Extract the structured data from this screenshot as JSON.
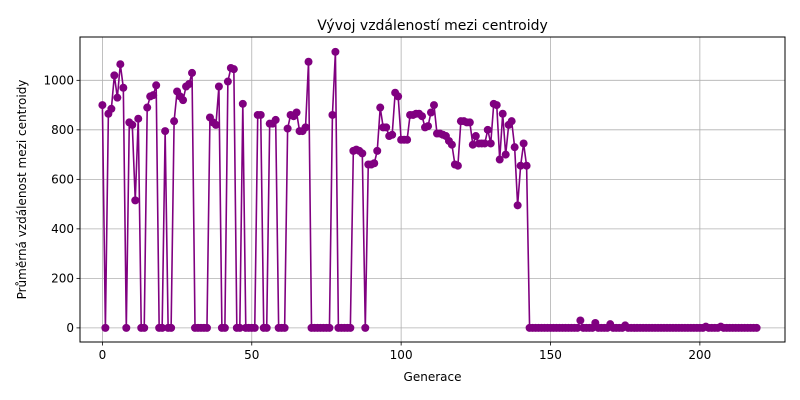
{
  "chart_data": {
    "type": "line",
    "title": "Vývoj vzdáleností mezi centroidy",
    "xlabel": "Generace",
    "ylabel": "Průměrná vzdálenost mezi centroidy",
    "xlim": [
      -7.5,
      228.5
    ],
    "ylim": [
      -57,
      1175
    ],
    "xticks": [
      0,
      50,
      100,
      150,
      200
    ],
    "yticks": [
      0,
      200,
      400,
      600,
      800,
      1000
    ],
    "grid": true,
    "series": [
      {
        "color": "#800080",
        "marker": "circle",
        "values": [
          900,
          0,
          865,
          885,
          1020,
          930,
          1065,
          970,
          0,
          830,
          820,
          515,
          845,
          0,
          0,
          890,
          935,
          940,
          980,
          0,
          0,
          795,
          0,
          0,
          835,
          955,
          935,
          920,
          975,
          985,
          1030,
          0,
          0,
          0,
          0,
          0,
          850,
          830,
          820,
          975,
          0,
          0,
          995,
          1050,
          1045,
          0,
          0,
          905,
          0,
          0,
          0,
          0,
          860,
          860,
          0,
          0,
          825,
          825,
          840,
          0,
          0,
          0,
          805,
          860,
          855,
          870,
          795,
          795,
          810,
          1075,
          0,
          0,
          0,
          0,
          0,
          0,
          0,
          860,
          1115,
          0,
          0,
          0,
          0,
          0,
          715,
          720,
          715,
          705,
          0,
          660,
          660,
          665,
          715,
          890,
          810,
          810,
          775,
          780,
          950,
          935,
          760,
          760,
          760,
          860,
          860,
          865,
          865,
          855,
          810,
          815,
          870,
          900,
          785,
          785,
          780,
          775,
          755,
          740,
          660,
          655,
          835,
          835,
          830,
          830,
          740,
          775,
          745,
          745,
          745,
          800,
          745,
          905,
          900,
          680,
          865,
          700,
          820,
          835,
          730,
          495,
          655,
          745,
          655,
          0,
          0,
          0,
          0,
          0,
          0,
          0,
          0,
          0,
          0,
          0,
          0,
          0,
          0,
          0,
          0,
          0,
          30,
          0,
          0,
          0,
          0,
          20,
          0,
          0,
          0,
          0,
          15,
          0,
          0,
          0,
          0,
          10,
          0,
          0,
          0,
          0,
          0,
          0,
          0,
          0,
          0,
          0,
          0,
          0,
          0,
          0,
          0,
          0,
          0,
          0,
          0,
          0,
          0,
          0,
          0,
          0,
          0,
          0,
          5,
          0,
          0,
          0,
          0,
          5,
          0,
          0,
          0,
          0,
          0,
          0,
          0,
          0,
          0,
          0,
          0,
          0
        ]
      }
    ]
  }
}
